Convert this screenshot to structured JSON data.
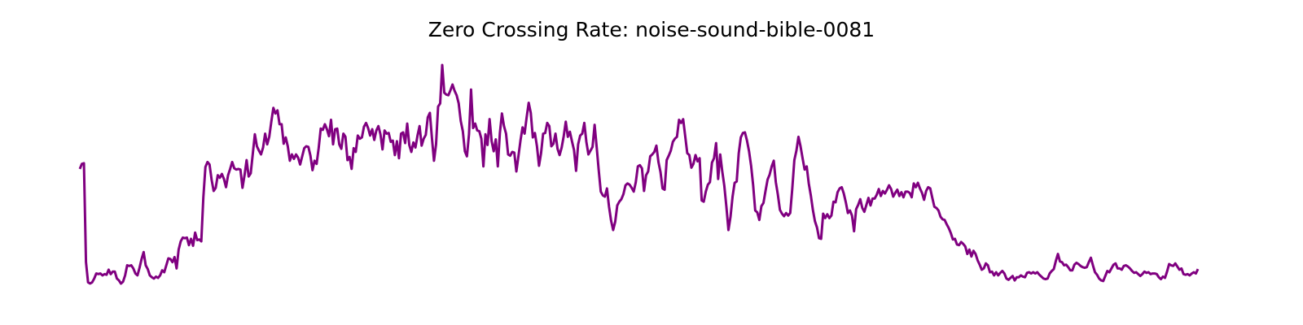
{
  "chart_data": {
    "type": "line",
    "title": "Zero Crossing Rate: noise-sound-bible-0081",
    "xlabel": "",
    "ylabel": "",
    "axes_visible": false,
    "grid": false,
    "series": [
      {
        "color": "#800080",
        "values": [
          0.182,
          0.19,
          0.191,
          0.034,
          0.002,
          0.0,
          0.002,
          0.008,
          0.016,
          0.015,
          0.016,
          0.013,
          0.015,
          0.014,
          0.022,
          0.015,
          0.019,
          0.019,
          0.008,
          0.005,
          0.0,
          0.003,
          0.013,
          0.029,
          0.028,
          0.029,
          0.024,
          0.016,
          0.013,
          0.025,
          0.039,
          0.05,
          0.029,
          0.023,
          0.013,
          0.01,
          0.008,
          0.011,
          0.009,
          0.013,
          0.021,
          0.018,
          0.029,
          0.04,
          0.039,
          0.034,
          0.042,
          0.024,
          0.054,
          0.067,
          0.073,
          0.072,
          0.073,
          0.061,
          0.071,
          0.06,
          0.081,
          0.069,
          0.07,
          0.067,
          0.137,
          0.185,
          0.193,
          0.189,
          0.165,
          0.147,
          0.152,
          0.172,
          0.168,
          0.174,
          0.166,
          0.153,
          0.172,
          0.182,
          0.193,
          0.183,
          0.181,
          0.182,
          0.181,
          0.152,
          0.172,
          0.196,
          0.17,
          0.175,
          0.206,
          0.237,
          0.218,
          0.211,
          0.205,
          0.216,
          0.238,
          0.221,
          0.233,
          0.257,
          0.279,
          0.27,
          0.275,
          0.253,
          0.253,
          0.222,
          0.232,
          0.218,
          0.195,
          0.205,
          0.198,
          0.205,
          0.2,
          0.189,
          0.202,
          0.215,
          0.218,
          0.217,
          0.203,
          0.18,
          0.195,
          0.19,
          0.215,
          0.246,
          0.244,
          0.253,
          0.245,
          0.234,
          0.26,
          0.221,
          0.245,
          0.246,
          0.221,
          0.214,
          0.238,
          0.233,
          0.196,
          0.201,
          0.182,
          0.215,
          0.209,
          0.235,
          0.23,
          0.232,
          0.249,
          0.255,
          0.247,
          0.235,
          0.245,
          0.228,
          0.243,
          0.25,
          0.237,
          0.213,
          0.243,
          0.238,
          0.239,
          0.225,
          0.227,
          0.204,
          0.226,
          0.199,
          0.238,
          0.24,
          0.223,
          0.254,
          0.22,
          0.209,
          0.224,
          0.216,
          0.235,
          0.25,
          0.219,
          0.23,
          0.236,
          0.264,
          0.271,
          0.231,
          0.195,
          0.221,
          0.281,
          0.286,
          0.347,
          0.303,
          0.3,
          0.299,
          0.307,
          0.316,
          0.306,
          0.299,
          0.286,
          0.258,
          0.242,
          0.21,
          0.202,
          0.237,
          0.308,
          0.247,
          0.254,
          0.243,
          0.242,
          0.23,
          0.186,
          0.237,
          0.22,
          0.261,
          0.226,
          0.21,
          0.229,
          0.186,
          0.239,
          0.27,
          0.25,
          0.238,
          0.205,
          0.203,
          0.209,
          0.208,
          0.178,
          0.202,
          0.227,
          0.248,
          0.238,
          0.264,
          0.287,
          0.271,
          0.232,
          0.239,
          0.218,
          0.187,
          0.207,
          0.238,
          0.239,
          0.255,
          0.25,
          0.218,
          0.222,
          0.238,
          0.214,
          0.204,
          0.216,
          0.234,
          0.257,
          0.233,
          0.241,
          0.226,
          0.212,
          0.179,
          0.221,
          0.235,
          0.238,
          0.255,
          0.225,
          0.205,
          0.211,
          0.217,
          0.252,
          0.217,
          0.18,
          0.146,
          0.14,
          0.138,
          0.151,
          0.122,
          0.1,
          0.085,
          0.098,
          0.124,
          0.13,
          0.134,
          0.142,
          0.156,
          0.159,
          0.157,
          0.152,
          0.146,
          0.161,
          0.186,
          0.188,
          0.183,
          0.147,
          0.172,
          0.178,
          0.202,
          0.205,
          0.209,
          0.219,
          0.193,
          0.177,
          0.151,
          0.149,
          0.196,
          0.203,
          0.211,
          0.225,
          0.23,
          0.233,
          0.26,
          0.255,
          0.261,
          0.234,
          0.207,
          0.204,
          0.184,
          0.19,
          0.204,
          0.194,
          0.199,
          0.132,
          0.13,
          0.146,
          0.157,
          0.161,
          0.192,
          0.199,
          0.223,
          0.166,
          0.205,
          0.178,
          0.155,
          0.122,
          0.085,
          0.106,
          0.138,
          0.16,
          0.162,
          0.207,
          0.232,
          0.239,
          0.24,
          0.227,
          0.21,
          0.187,
          0.156,
          0.116,
          0.113,
          0.101,
          0.123,
          0.128,
          0.147,
          0.165,
          0.173,
          0.186,
          0.195,
          0.161,
          0.141,
          0.117,
          0.111,
          0.107,
          0.112,
          0.108,
          0.112,
          0.151,
          0.196,
          0.211,
          0.233,
          0.218,
          0.199,
          0.181,
          0.186,
          0.159,
          0.14,
          0.117,
          0.099,
          0.089,
          0.072,
          0.071,
          0.111,
          0.104,
          0.11,
          0.104,
          0.108,
          0.13,
          0.129,
          0.145,
          0.151,
          0.153,
          0.143,
          0.129,
          0.112,
          0.116,
          0.108,
          0.083,
          0.118,
          0.125,
          0.134,
          0.12,
          0.114,
          0.125,
          0.136,
          0.124,
          0.135,
          0.135,
          0.141,
          0.15,
          0.139,
          0.147,
          0.143,
          0.149,
          0.156,
          0.15,
          0.138,
          0.144,
          0.149,
          0.139,
          0.145,
          0.137,
          0.146,
          0.146,
          0.144,
          0.137,
          0.159,
          0.153,
          0.16,
          0.151,
          0.144,
          0.133,
          0.147,
          0.153,
          0.151,
          0.136,
          0.122,
          0.12,
          0.116,
          0.106,
          0.102,
          0.101,
          0.094,
          0.088,
          0.08,
          0.07,
          0.071,
          0.062,
          0.061,
          0.066,
          0.063,
          0.059,
          0.047,
          0.054,
          0.043,
          0.052,
          0.047,
          0.037,
          0.03,
          0.022,
          0.024,
          0.032,
          0.029,
          0.018,
          0.019,
          0.013,
          0.018,
          0.013,
          0.017,
          0.02,
          0.016,
          0.008,
          0.006,
          0.009,
          0.012,
          0.005,
          0.01,
          0.01,
          0.013,
          0.011,
          0.01,
          0.017,
          0.018,
          0.016,
          0.018,
          0.016,
          0.018,
          0.014,
          0.011,
          0.008,
          0.007,
          0.008,
          0.016,
          0.02,
          0.023,
          0.036,
          0.047,
          0.035,
          0.034,
          0.029,
          0.03,
          0.026,
          0.021,
          0.021,
          0.03,
          0.033,
          0.031,
          0.028,
          0.026,
          0.025,
          0.026,
          0.034,
          0.041,
          0.029,
          0.018,
          0.014,
          0.008,
          0.005,
          0.004,
          0.012,
          0.02,
          0.018,
          0.024,
          0.03,
          0.032,
          0.024,
          0.024,
          0.022,
          0.028,
          0.029,
          0.027,
          0.024,
          0.02,
          0.017,
          0.018,
          0.015,
          0.012,
          0.015,
          0.019,
          0.017,
          0.018,
          0.015,
          0.016,
          0.016,
          0.015,
          0.01,
          0.007,
          0.011,
          0.009,
          0.019,
          0.031,
          0.029,
          0.028,
          0.032,
          0.027,
          0.022,
          0.024,
          0.015,
          0.014,
          0.015,
          0.013,
          0.016,
          0.018,
          0.016,
          0.023
        ]
      }
    ]
  }
}
